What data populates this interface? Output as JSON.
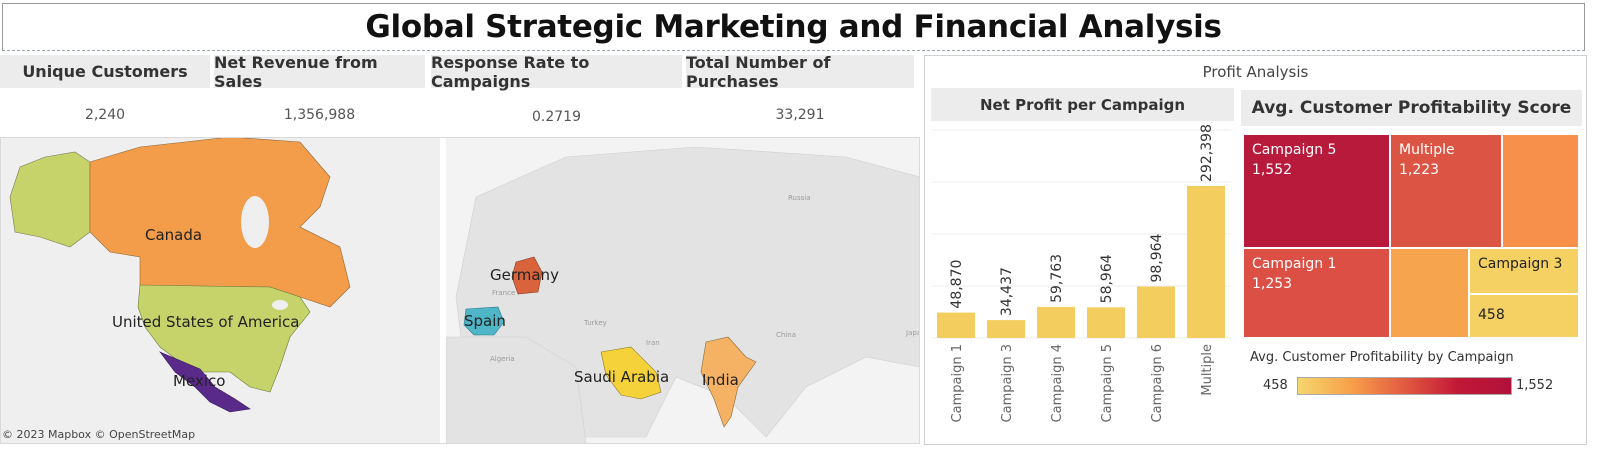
{
  "dashboard": {
    "title": "Global Strategic Marketing and Financial Analysis"
  },
  "kpis": [
    {
      "label": "Unique Customers",
      "value": "2,240"
    },
    {
      "label": "Net Revenue from Sales",
      "value": "1,356,988"
    },
    {
      "label": "Response Rate to Campaigns",
      "value": "0.2719"
    },
    {
      "label": "Total Number of Purchases",
      "value": "33,291"
    }
  ],
  "maps": {
    "north_america": {
      "labels": [
        "Canada",
        "United States of America",
        "Mexico"
      ]
    },
    "eurasia": {
      "labels": [
        "Germany",
        "Spain",
        "Saudi Arabia",
        "India"
      ],
      "basemap_labels": [
        "Russia",
        "France",
        "Turkey",
        "Iran",
        "China",
        "Algeria",
        "Japa"
      ]
    },
    "attribution": "© 2023 Mapbox © OpenStreetMap",
    "colors": {
      "Canada": "#f39c4a",
      "United States of America": "#c5d36a",
      "Mexico": "#5a2a8a",
      "Germany": "#d9643c",
      "Spain": "#4fb6c8",
      "Saudi Arabia": "#f6d23a",
      "India": "#f5b264",
      "Greenland": "#c5d36a"
    }
  },
  "profit": {
    "section_title": "Profit Analysis",
    "bar_title": "Net Profit per Campaign",
    "treemap_title": "Avg. Customer Profitability Score",
    "legend_title": "Avg. Customer Profitability by Campaign",
    "legend_min": "458",
    "legend_max": "1,552",
    "treemap": [
      {
        "name": "Campaign 5",
        "value": "1,552",
        "color": "#b81a3b"
      },
      {
        "name": "Multiple",
        "value": "1,223",
        "color": "#dc5443"
      },
      {
        "name": "",
        "value": "",
        "color": "#f7904a"
      },
      {
        "name": "Campaign 1",
        "value": "1,253",
        "color": "#dc4f44"
      },
      {
        "name": "",
        "value": "",
        "color": "#f7a44e"
      },
      {
        "name": "Campaign 3",
        "value": "",
        "color": "#f5d063"
      },
      {
        "name": "",
        "value": "458",
        "color": "#f5d063"
      }
    ]
  },
  "chart_data": {
    "type": "bar",
    "title": "Net Profit per Campaign",
    "categories": [
      "Campaign 1",
      "Campaign 3",
      "Campaign 4",
      "Campaign 5",
      "Campaign 6",
      "Multiple"
    ],
    "values": [
      48870,
      34437,
      59763,
      58964,
      98964,
      292398
    ],
    "value_labels": [
      "48,870",
      "34,437",
      "59,763",
      "58,964",
      "98,964",
      "292,398"
    ],
    "bar_color": "#f3ce5e",
    "ylim": [
      0,
      400000
    ],
    "grid": true,
    "xlabel": "",
    "ylabel": ""
  }
}
